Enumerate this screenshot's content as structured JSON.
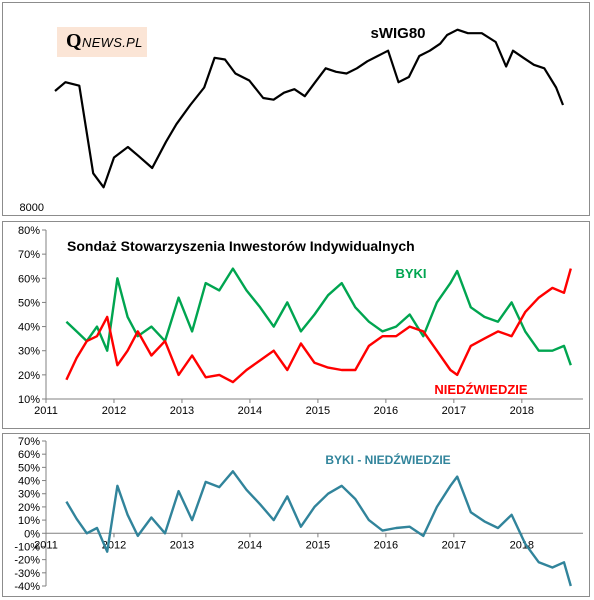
{
  "logo": {
    "initial": "Q",
    "text": "NEWS.PL",
    "background": "#fbe5d6"
  },
  "chart_data": [
    {
      "type": "line",
      "title": "sWIG80",
      "ytick_labels": [
        "8000"
      ],
      "x": [
        2011.4,
        2011.55,
        2011.75,
        2011.95,
        2012.1,
        2012.25,
        2012.45,
        2012.6,
        2012.8,
        2013.0,
        2013.15,
        2013.35,
        2013.55,
        2013.7,
        2013.85,
        2014.0,
        2014.2,
        2014.4,
        2014.55,
        2014.7,
        2014.85,
        2015.0,
        2015.15,
        2015.3,
        2015.45,
        2015.6,
        2015.75,
        2015.9,
        2016.05,
        2016.2,
        2016.35,
        2016.5,
        2016.65,
        2016.8,
        2016.95,
        2017.05,
        2017.2,
        2017.35,
        2017.55,
        2017.75,
        2017.9,
        2018.0,
        2018.15,
        2018.3,
        2018.45,
        2018.62,
        2018.72
      ],
      "y": [
        11200,
        11450,
        11350,
        8850,
        8450,
        9300,
        9600,
        9350,
        9000,
        9750,
        10250,
        10800,
        11300,
        12150,
        12100,
        11700,
        11500,
        11000,
        10950,
        11150,
        11250,
        11050,
        11450,
        11850,
        11750,
        11700,
        11850,
        12050,
        12200,
        12350,
        11450,
        11600,
        12200,
        12350,
        12550,
        12800,
        12950,
        12850,
        12850,
        12600,
        11900,
        12350,
        12150,
        11950,
        11850,
        11300,
        10800
      ],
      "ylim": [
        8000,
        13000
      ],
      "color": "#000000"
    },
    {
      "type": "line",
      "title": "Sondaż Stowarzyszenia Inwestorów Indywidualnych",
      "yticks": [
        "80%",
        "70%",
        "60%",
        "50%",
        "40%",
        "30%",
        "20%",
        "10%"
      ],
      "xticks": [
        "2011",
        "2012",
        "2013",
        "2014",
        "2015",
        "2016",
        "2017",
        "2018"
      ],
      "ylim": [
        10,
        80
      ],
      "xlim": [
        2011,
        2018.9
      ],
      "x": [
        2011.3,
        2011.45,
        2011.6,
        2011.75,
        2011.9,
        2012.05,
        2012.2,
        2012.35,
        2012.55,
        2012.75,
        2012.95,
        2013.15,
        2013.35,
        2013.55,
        2013.75,
        2013.95,
        2014.15,
        2014.35,
        2014.55,
        2014.75,
        2014.95,
        2015.15,
        2015.35,
        2015.55,
        2015.75,
        2015.95,
        2016.15,
        2016.35,
        2016.55,
        2016.75,
        2016.95,
        2017.05,
        2017.25,
        2017.45,
        2017.65,
        2017.85,
        2018.05,
        2018.25,
        2018.45,
        2018.62,
        2018.72
      ],
      "series": [
        {
          "name": "BYKI",
          "color": "#00a550",
          "values": [
            42,
            38,
            34,
            40,
            30,
            60,
            44,
            36,
            40,
            34,
            52,
            38,
            58,
            55,
            64,
            55,
            48,
            40,
            50,
            38,
            45,
            53,
            58,
            48,
            42,
            38,
            40,
            45,
            36,
            50,
            58,
            63,
            48,
            44,
            42,
            50,
            38,
            30,
            30,
            32,
            24
          ]
        },
        {
          "name": "NIEDŹWIEDZIE",
          "color": "#ff0000",
          "values": [
            18,
            27,
            34,
            36,
            44,
            24,
            30,
            38,
            28,
            34,
            20,
            28,
            19,
            20,
            17,
            22,
            26,
            30,
            22,
            33,
            25,
            23,
            22,
            22,
            32,
            36,
            36,
            40,
            38,
            30,
            22,
            20,
            32,
            35,
            38,
            36,
            46,
            52,
            56,
            54,
            64
          ]
        }
      ]
    },
    {
      "type": "line",
      "title": "BYKI - NIEDŹWIEDZIE",
      "yticks": [
        "70%",
        "60%",
        "50%",
        "40%",
        "30%",
        "20%",
        "10%",
        "0%",
        "-10%",
        "-20%",
        "-30%",
        "-40%"
      ],
      "xticks": [
        "2011",
        "2012",
        "2013",
        "2014",
        "2015",
        "2016",
        "2017",
        "2018"
      ],
      "ylim": [
        -40,
        70
      ],
      "xlim": [
        2011,
        2018.9
      ],
      "x": [
        2011.3,
        2011.45,
        2011.6,
        2011.75,
        2011.9,
        2012.05,
        2012.2,
        2012.35,
        2012.55,
        2012.75,
        2012.95,
        2013.15,
        2013.35,
        2013.55,
        2013.75,
        2013.95,
        2014.15,
        2014.35,
        2014.55,
        2014.75,
        2014.95,
        2015.15,
        2015.35,
        2015.55,
        2015.75,
        2015.95,
        2016.15,
        2016.35,
        2016.55,
        2016.75,
        2016.95,
        2017.05,
        2017.25,
        2017.45,
        2017.65,
        2017.85,
        2018.05,
        2018.25,
        2018.45,
        2018.62,
        2018.72
      ],
      "series": [
        {
          "name": "BYKI - NIEDŹWIEDZIE",
          "color": "#31849b",
          "values": [
            24,
            11,
            0,
            4,
            -14,
            36,
            14,
            -2,
            12,
            0,
            32,
            10,
            39,
            35,
            47,
            33,
            22,
            10,
            28,
            5,
            20,
            30,
            36,
            26,
            10,
            2,
            4,
            5,
            -2,
            20,
            36,
            43,
            16,
            9,
            4,
            14,
            -8,
            -22,
            -26,
            -22,
            -40
          ]
        }
      ]
    }
  ]
}
